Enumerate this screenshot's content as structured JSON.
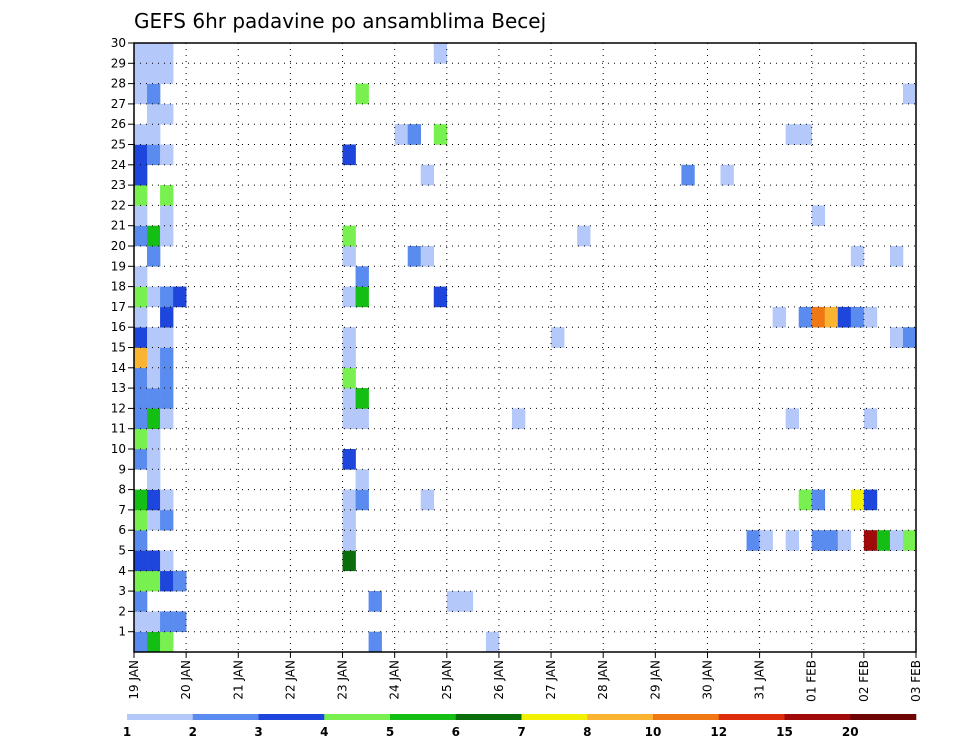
{
  "chart_data": {
    "type": "heatmap",
    "title": "GEFS 6hr padavine po ansamblima Becej",
    "y_ticks": [
      1,
      2,
      3,
      4,
      5,
      6,
      7,
      8,
      9,
      10,
      11,
      12,
      13,
      14,
      15,
      16,
      17,
      18,
      19,
      20,
      21,
      22,
      23,
      24,
      25,
      26,
      27,
      28,
      29,
      30
    ],
    "x_ticks": [
      "19 JAN",
      "20 JAN",
      "21 JAN",
      "22 JAN",
      "23 JAN",
      "24 JAN",
      "25 JAN",
      "26 JAN",
      "27 JAN",
      "28 JAN",
      "29 JAN",
      "30 JAN",
      "31 JAN",
      "01 FEB",
      "02 FEB",
      "03 FEB"
    ],
    "x_range": [
      "19 JAN",
      "03 FEB"
    ],
    "y_range": [
      0,
      30
    ],
    "grid": true,
    "colorbar": {
      "labels": [
        "1",
        "2",
        "3",
        "4",
        "5",
        "6",
        "7",
        "8",
        "10",
        "12",
        "15",
        "20"
      ],
      "colors": [
        "#b4c8fa",
        "#5a8cf0",
        "#1e46dc",
        "#78f050",
        "#14be14",
        "#0a6e0a",
        "#f0f000",
        "#fab432",
        "#f07814",
        "#dc2d0a",
        "#a00a0a",
        "#6e0505"
      ]
    },
    "legend_placement": "bottom",
    "series": [
      {
        "member": 0,
        "values": [
          [
            0.0,
            2
          ],
          [
            0.25,
            5
          ],
          [
            0.5,
            4
          ],
          [
            4.5,
            2
          ],
          [
            6.75,
            1
          ]
        ]
      },
      {
        "member": 1,
        "values": [
          [
            0.0,
            1
          ],
          [
            0.25,
            1
          ],
          [
            0.5,
            2
          ],
          [
            0.75,
            2
          ]
        ]
      },
      {
        "member": 2,
        "values": [
          [
            0.0,
            2
          ],
          [
            4.5,
            2
          ],
          [
            6.0,
            1
          ],
          [
            6.25,
            1
          ]
        ]
      },
      {
        "member": 3,
        "values": [
          [
            0.0,
            4
          ],
          [
            0.25,
            4
          ],
          [
            0.5,
            3
          ],
          [
            0.75,
            2
          ]
        ]
      },
      {
        "member": 4,
        "values": [
          [
            0.0,
            3
          ],
          [
            0.25,
            3
          ],
          [
            0.5,
            1
          ],
          [
            4.0,
            6
          ]
        ]
      },
      {
        "member": 5,
        "values": [
          [
            0.0,
            2
          ],
          [
            4.0,
            1
          ],
          [
            11.75,
            2
          ],
          [
            12.0,
            1
          ],
          [
            12.5,
            1
          ],
          [
            13.0,
            2
          ],
          [
            13.25,
            2
          ],
          [
            13.5,
            1
          ],
          [
            14.0,
            11
          ],
          [
            14.25,
            5
          ],
          [
            14.5,
            1
          ],
          [
            14.75,
            4
          ]
        ]
      },
      {
        "member": 6,
        "values": [
          [
            0.0,
            4
          ],
          [
            0.25,
            1
          ],
          [
            0.5,
            2
          ],
          [
            4.0,
            1
          ]
        ]
      },
      {
        "member": 7,
        "values": [
          [
            0.0,
            5
          ],
          [
            0.25,
            3
          ],
          [
            0.5,
            1
          ],
          [
            4.0,
            1
          ],
          [
            4.25,
            2
          ],
          [
            5.5,
            1
          ],
          [
            12.75,
            4
          ],
          [
            13.0,
            2
          ],
          [
            13.75,
            7
          ],
          [
            14.0,
            3
          ]
        ]
      },
      {
        "member": 8,
        "values": [
          [
            0.25,
            1
          ],
          [
            4.25,
            1
          ]
        ]
      },
      {
        "member": 9,
        "values": [
          [
            0.0,
            2
          ],
          [
            0.25,
            1
          ],
          [
            4.0,
            3
          ]
        ]
      },
      {
        "member": 10,
        "values": [
          [
            0.0,
            4
          ],
          [
            0.25,
            1
          ]
        ]
      },
      {
        "member": 11,
        "values": [
          [
            0.0,
            2
          ],
          [
            0.25,
            5
          ],
          [
            0.5,
            1
          ],
          [
            4.0,
            1
          ],
          [
            4.25,
            1
          ],
          [
            7.25,
            1
          ],
          [
            12.5,
            1
          ],
          [
            14.0,
            1
          ]
        ]
      },
      {
        "member": 12,
        "values": [
          [
            0.0,
            2
          ],
          [
            0.25,
            2
          ],
          [
            0.5,
            2
          ],
          [
            4.0,
            1
          ],
          [
            4.25,
            5
          ]
        ]
      },
      {
        "member": 13,
        "values": [
          [
            0.0,
            2
          ],
          [
            0.25,
            1
          ],
          [
            0.5,
            2
          ],
          [
            4.0,
            4
          ]
        ]
      },
      {
        "member": 14,
        "values": [
          [
            0.0,
            8
          ],
          [
            0.25,
            1
          ],
          [
            0.5,
            2
          ],
          [
            4.0,
            1
          ]
        ]
      },
      {
        "member": 15,
        "values": [
          [
            0.0,
            3
          ],
          [
            0.25,
            1
          ],
          [
            0.5,
            1
          ],
          [
            4.0,
            1
          ],
          [
            8.0,
            1
          ],
          [
            14.5,
            1
          ],
          [
            14.75,
            2
          ]
        ]
      },
      {
        "member": 16,
        "values": [
          [
            0.0,
            1
          ],
          [
            0.5,
            3
          ],
          [
            12.25,
            1
          ],
          [
            12.75,
            2
          ],
          [
            13.0,
            9
          ],
          [
            13.25,
            8
          ],
          [
            13.5,
            3
          ],
          [
            13.75,
            2
          ],
          [
            14.0,
            1
          ]
        ]
      },
      {
        "member": 17,
        "values": [
          [
            0.0,
            4
          ],
          [
            0.25,
            1
          ],
          [
            0.5,
            2
          ],
          [
            0.75,
            3
          ],
          [
            4.0,
            1
          ],
          [
            4.25,
            5
          ],
          [
            5.75,
            3
          ]
        ]
      },
      {
        "member": 18,
        "values": [
          [
            0.0,
            1
          ],
          [
            4.25,
            2
          ]
        ]
      },
      {
        "member": 19,
        "values": [
          [
            0.25,
            2
          ],
          [
            4.0,
            1
          ],
          [
            5.25,
            2
          ],
          [
            5.5,
            1
          ],
          [
            13.75,
            1
          ],
          [
            14.5,
            1
          ]
        ]
      },
      {
        "member": 20,
        "values": [
          [
            0.0,
            2
          ],
          [
            0.25,
            5
          ],
          [
            0.5,
            1
          ],
          [
            4.0,
            4
          ],
          [
            8.5,
            1
          ]
        ]
      },
      {
        "member": 21,
        "values": [
          [
            0.0,
            1
          ],
          [
            0.5,
            1
          ],
          [
            13.0,
            1
          ]
        ]
      },
      {
        "member": 22,
        "values": [
          [
            0.0,
            4
          ],
          [
            0.5,
            4
          ]
        ]
      },
      {
        "member": 23,
        "values": [
          [
            0.0,
            3
          ],
          [
            5.5,
            1
          ],
          [
            10.5,
            2
          ],
          [
            11.25,
            1
          ]
        ]
      },
      {
        "member": 24,
        "values": [
          [
            0.0,
            3
          ],
          [
            0.25,
            2
          ],
          [
            0.5,
            1
          ],
          [
            4.0,
            3
          ]
        ]
      },
      {
        "member": 25,
        "values": [
          [
            0.0,
            1
          ],
          [
            0.25,
            1
          ],
          [
            5.0,
            1
          ],
          [
            5.25,
            2
          ],
          [
            5.75,
            4
          ],
          [
            12.5,
            1
          ],
          [
            12.75,
            1
          ]
        ]
      },
      {
        "member": 26,
        "values": [
          [
            0.25,
            1
          ],
          [
            0.5,
            1
          ]
        ]
      },
      {
        "member": 27,
        "values": [
          [
            0.0,
            1
          ],
          [
            0.25,
            2
          ],
          [
            4.25,
            4
          ],
          [
            14.75,
            1
          ]
        ]
      },
      {
        "member": 28,
        "values": [
          [
            0.0,
            1
          ],
          [
            0.25,
            1
          ],
          [
            0.5,
            1
          ]
        ]
      },
      {
        "member": 29,
        "values": [
          [
            0.0,
            1
          ],
          [
            0.25,
            1
          ],
          [
            0.5,
            1
          ],
          [
            5.75,
            1
          ]
        ]
      }
    ]
  }
}
